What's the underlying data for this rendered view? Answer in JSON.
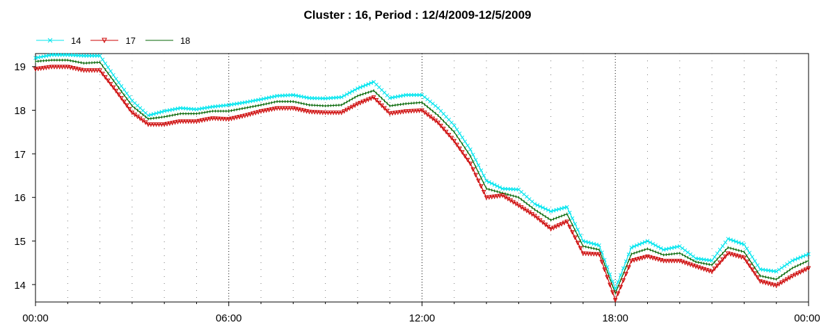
{
  "chart_data": {
    "type": "line",
    "title": "Cluster : 16, Period : 12/4/2009-12/5/2009",
    "xlabel": "",
    "ylabel": "",
    "x_ticks": [
      "00:00",
      "06:00",
      "12:00",
      "18:00",
      "00:00"
    ],
    "y_ticks": [
      "14",
      "15",
      "16",
      "17",
      "18",
      "19"
    ],
    "x_hours": [
      0,
      0.5,
      1,
      1.5,
      2,
      2.5,
      3,
      3.5,
      4,
      4.5,
      5,
      5.5,
      6,
      6.5,
      7,
      7.5,
      8,
      8.5,
      9,
      9.5,
      10,
      10.5,
      11,
      11.5,
      12,
      12.5,
      13,
      13.5,
      14,
      14.5,
      15,
      15.5,
      16,
      16.5,
      17,
      17.5,
      18,
      18.5,
      19,
      19.5,
      20,
      20.5,
      21,
      21.5,
      22,
      22.5,
      23,
      23.5,
      24
    ],
    "xlim_hours": [
      0,
      24
    ],
    "ylim": [
      13.6,
      19.3
    ],
    "grid": true,
    "legend": "top-left",
    "series": [
      {
        "name": "14",
        "color": "#00e5ee",
        "marker": "x",
        "values": [
          19.2,
          19.27,
          19.27,
          19.25,
          19.25,
          18.72,
          18.22,
          17.88,
          17.98,
          18.05,
          18.02,
          18.08,
          18.12,
          18.18,
          18.25,
          18.33,
          18.35,
          18.28,
          18.27,
          18.3,
          18.5,
          18.65,
          18.28,
          18.35,
          18.35,
          18.05,
          17.65,
          17.1,
          16.38,
          16.2,
          16.18,
          15.85,
          15.68,
          15.78,
          15.0,
          14.9,
          13.9,
          14.85,
          15.0,
          14.8,
          14.88,
          14.6,
          14.55,
          15.05,
          14.92,
          14.35,
          14.3,
          14.55,
          14.7
        ]
      },
      {
        "name": "17",
        "color": "#cc0000",
        "marker": "triangle-down",
        "values": [
          18.95,
          19.0,
          19.0,
          18.92,
          18.92,
          18.45,
          17.95,
          17.68,
          17.68,
          17.75,
          17.75,
          17.82,
          17.8,
          17.88,
          17.98,
          18.05,
          18.05,
          17.97,
          17.95,
          17.95,
          18.15,
          18.3,
          17.93,
          17.98,
          18.0,
          17.72,
          17.3,
          16.78,
          16.0,
          16.05,
          15.82,
          15.58,
          15.28,
          15.45,
          14.72,
          14.7,
          13.65,
          14.55,
          14.65,
          14.55,
          14.55,
          14.42,
          14.3,
          14.72,
          14.62,
          14.08,
          13.98,
          14.2,
          14.38
        ]
      },
      {
        "name": "18",
        "color": "#006400",
        "marker": "tick",
        "values": [
          19.12,
          19.15,
          19.15,
          19.08,
          19.1,
          18.6,
          18.1,
          17.8,
          17.85,
          17.92,
          17.92,
          17.98,
          17.98,
          18.05,
          18.12,
          18.2,
          18.2,
          18.12,
          18.1,
          18.12,
          18.33,
          18.45,
          18.1,
          18.15,
          18.18,
          17.88,
          17.5,
          16.95,
          16.2,
          16.1,
          16.0,
          15.72,
          15.48,
          15.62,
          14.88,
          14.8,
          13.8,
          14.7,
          14.82,
          14.68,
          14.72,
          14.52,
          14.45,
          14.85,
          14.75,
          14.2,
          14.12,
          14.38,
          14.55
        ]
      }
    ]
  }
}
